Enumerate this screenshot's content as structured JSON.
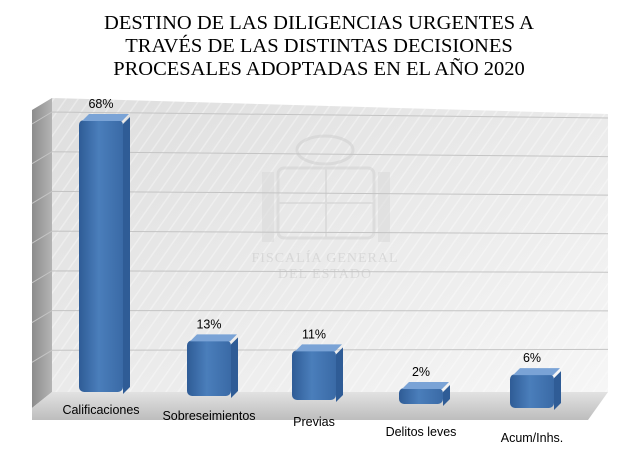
{
  "chart_data": {
    "type": "bar",
    "title_lines": [
      "DESTINO DE LAS DILIGENCIAS URGENTES A",
      "TRAVÉS DE LAS DISTINTAS DECISIONES",
      "PROCESALES ADOPTADAS EN EL AÑO 2020"
    ],
    "categories": [
      "Calificaciones",
      "Sobreseimientos",
      "Previas",
      "Delitos leves",
      "Acum/Inhs."
    ],
    "values": [
      68,
      13,
      11,
      2,
      6
    ],
    "value_labels": [
      "68%",
      "13%",
      "11%",
      "2%",
      "6%"
    ],
    "ylim": [
      0,
      70
    ],
    "grid": true,
    "legend": "none",
    "three_d": true,
    "bar_color": "#4a7ebb",
    "bar_top_color": "#7aa3d6",
    "bar_side_color": "#2f5c96"
  },
  "watermark": {
    "line1": "FISCALÍA GENERAL",
    "line2": "DEL ESTADO"
  }
}
